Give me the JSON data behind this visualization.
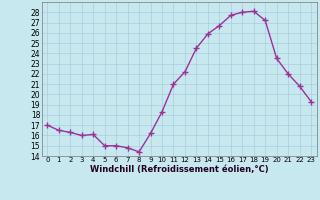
{
  "x": [
    0,
    1,
    2,
    3,
    4,
    5,
    6,
    7,
    8,
    9,
    10,
    11,
    12,
    13,
    14,
    15,
    16,
    17,
    18,
    19,
    20,
    21,
    22,
    23
  ],
  "y": [
    17,
    16.5,
    16.3,
    16.0,
    16.1,
    15.0,
    15.0,
    14.8,
    14.4,
    16.2,
    18.3,
    21.0,
    22.2,
    24.5,
    25.9,
    26.7,
    27.7,
    28.0,
    28.1,
    27.2,
    23.5,
    22.0,
    20.8,
    19.3
  ],
  "color": "#993399",
  "bg_color": "#c8e8f0",
  "grid_color": "#aaccdd",
  "xlabel": "Windchill (Refroidissement éolien,°C)",
  "ylim": [
    14,
    29
  ],
  "xlim": [
    -0.5,
    23.5
  ],
  "yticks": [
    14,
    15,
    16,
    17,
    18,
    19,
    20,
    21,
    22,
    23,
    24,
    25,
    26,
    27,
    28
  ],
  "xticks": [
    0,
    1,
    2,
    3,
    4,
    5,
    6,
    7,
    8,
    9,
    10,
    11,
    12,
    13,
    14,
    15,
    16,
    17,
    18,
    19,
    20,
    21,
    22,
    23
  ],
  "marker": "+",
  "markersize": 4,
  "linewidth": 1.0,
  "xlabel_fontsize": 6.0,
  "xtick_fontsize": 5.0,
  "ytick_fontsize": 5.5
}
